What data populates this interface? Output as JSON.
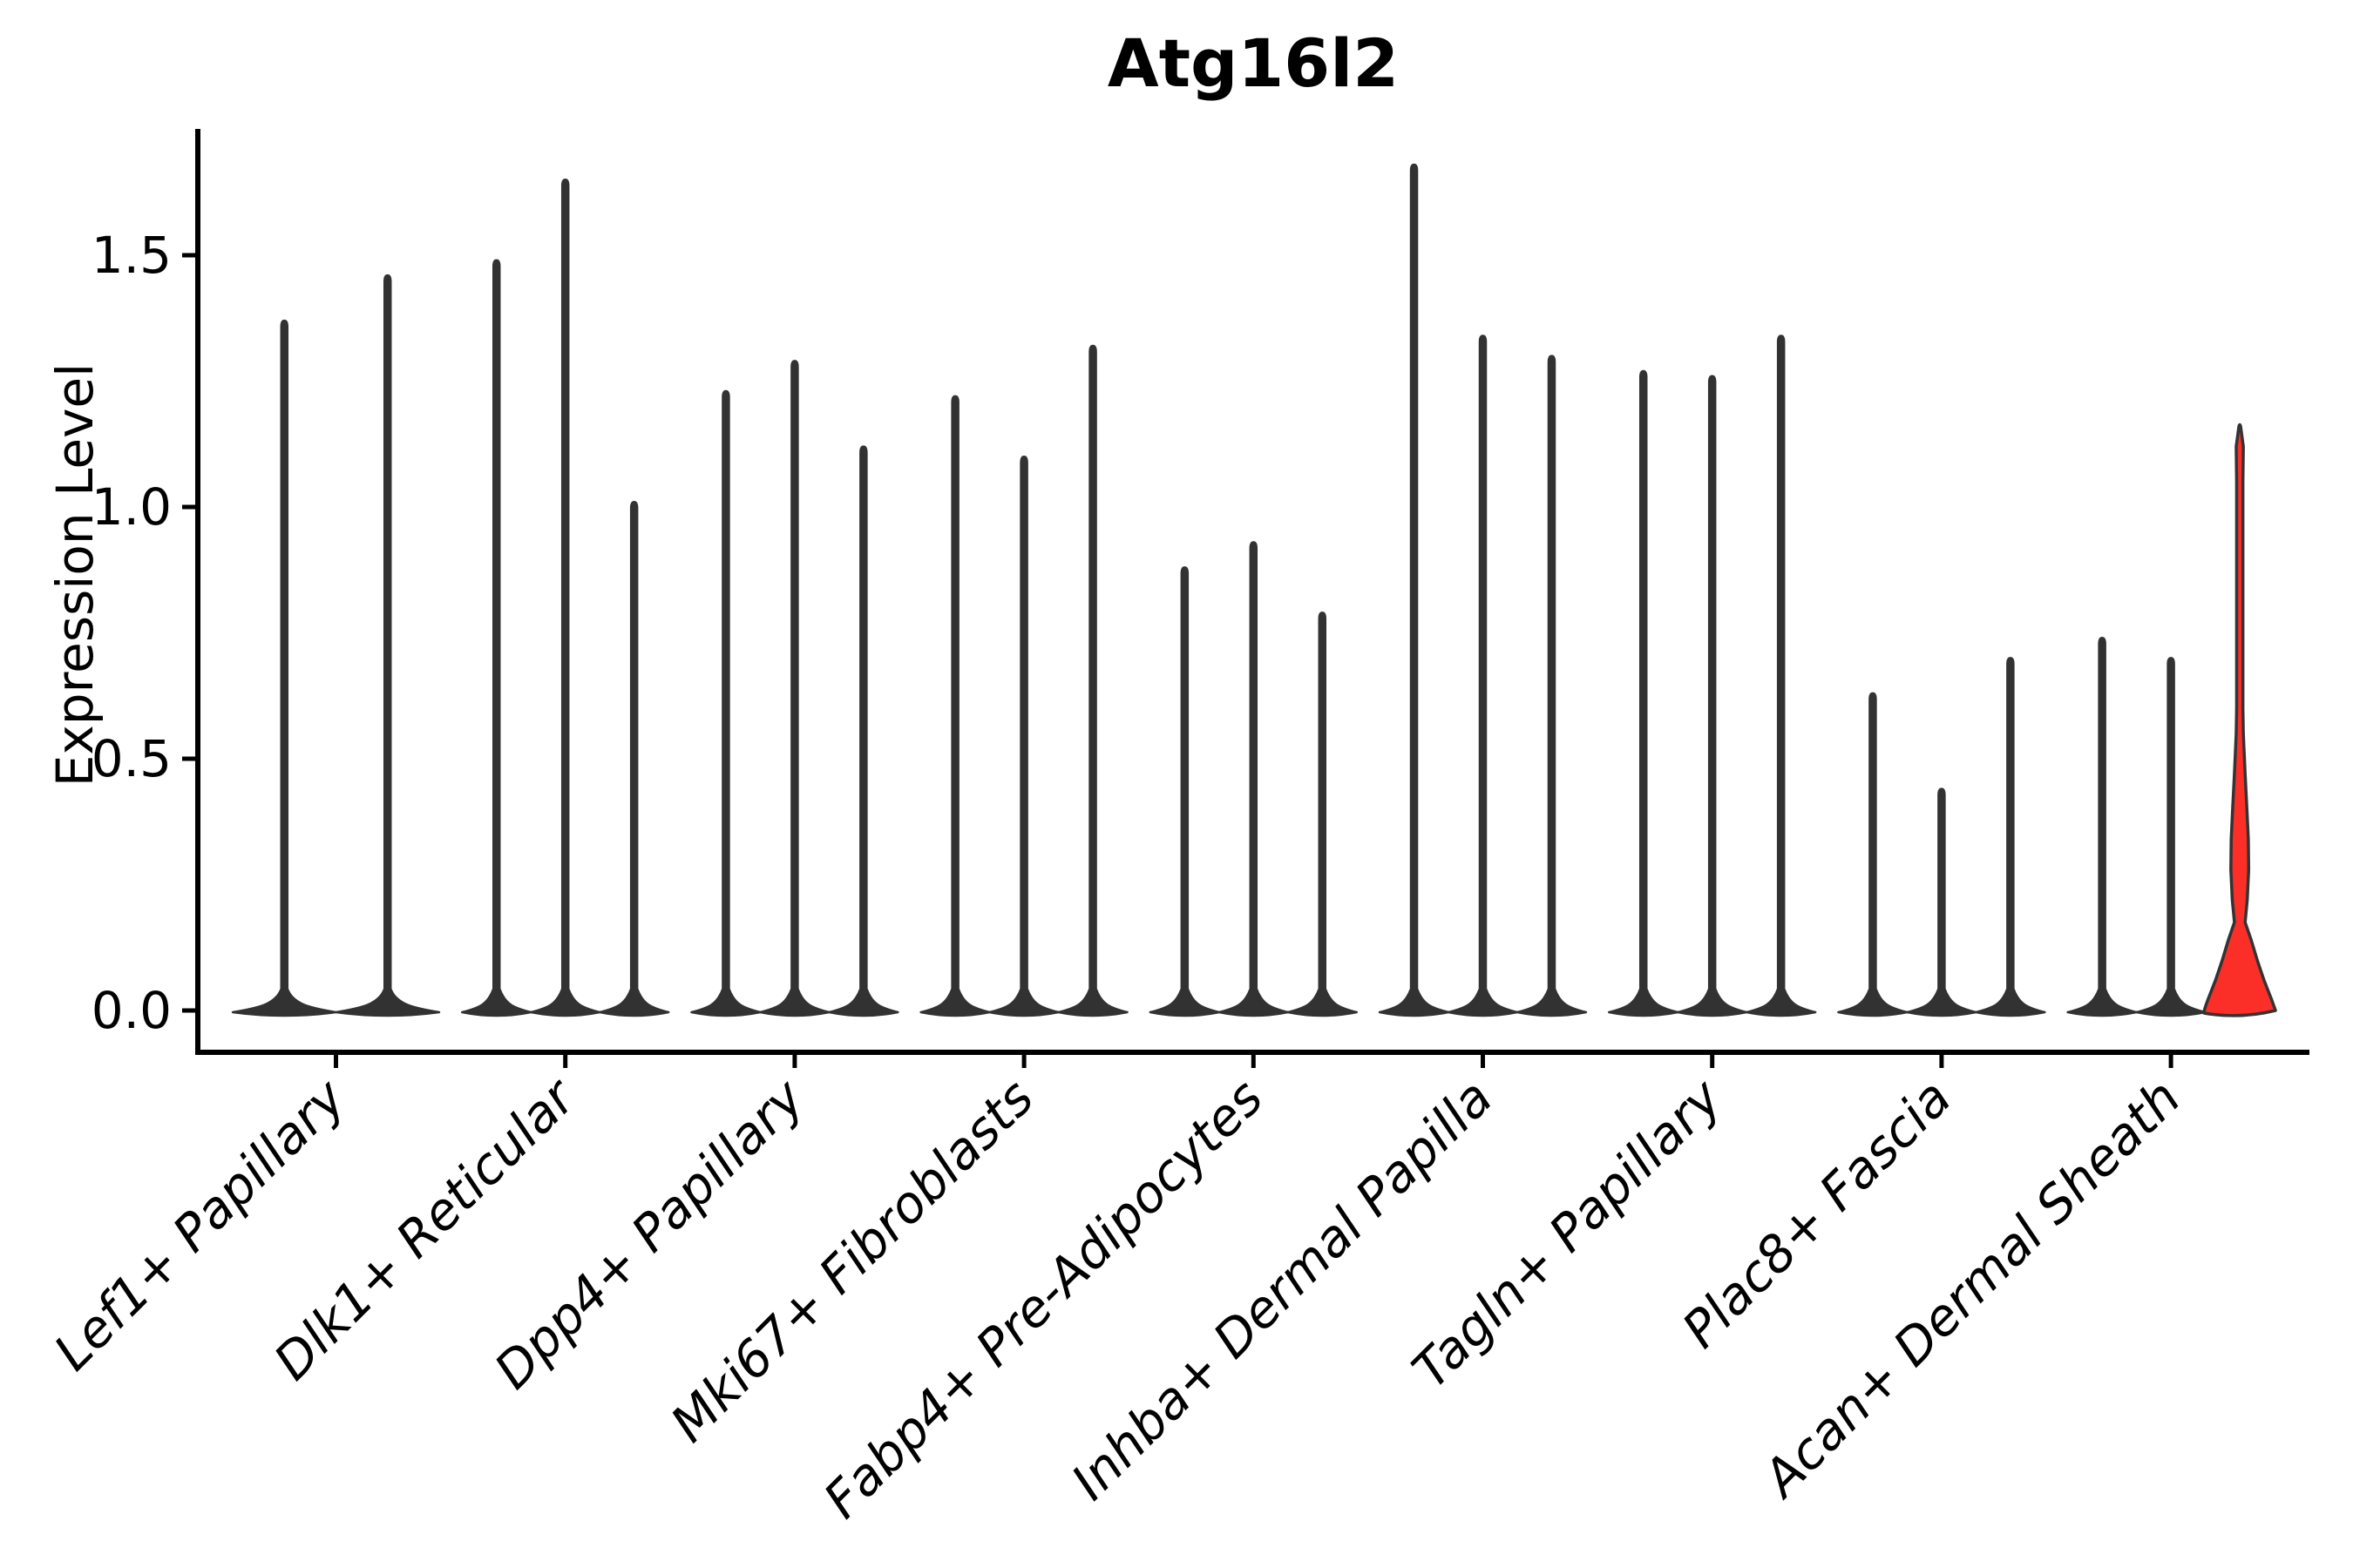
{
  "colors": {
    "background": "#ffffff",
    "violin_fill": "#323232",
    "violin_outline": "#323232",
    "highlight_fill": "#fb2f28",
    "highlight_outline": "#333333",
    "axis": "#000000",
    "text": "#000000"
  },
  "chart_data": {
    "type": "violin",
    "title": "Atg16l2",
    "xlabel": "",
    "ylabel": "Expression Level",
    "ylim": [
      -0.08,
      1.75
    ],
    "yticks": [
      0.0,
      0.5,
      1.0,
      1.5
    ],
    "ytick_labels": [
      "0.0",
      "0.5",
      "1.0",
      "1.5"
    ],
    "grid": false,
    "legend_position": "none",
    "categories": [
      "Lef1+ Papillary",
      "Dlk1+ Reticular",
      "Dpp4+ Papillary",
      "Mki67+ Fibroblasts",
      "Fabp4+ Pre-Adipocytes",
      "Inhba+ Dermal Papilla",
      "Tagln+ Papillary",
      "Plac8+ Fascia",
      "Acan+ Dermal Sheath"
    ],
    "groups": [
      {
        "label": "Lef1+ Papillary",
        "violins": [
          {
            "max": 1.37
          },
          {
            "max": 1.46
          }
        ]
      },
      {
        "label": "Dlk1+ Reticular",
        "violins": [
          {
            "max": 1.49
          },
          {
            "max": 1.65
          },
          {
            "max": 1.01
          }
        ]
      },
      {
        "label": "Dpp4+ Papillary",
        "violins": [
          {
            "max": 1.23
          },
          {
            "max": 1.29
          },
          {
            "max": 1.12
          }
        ]
      },
      {
        "label": "Mki67+ Fibroblasts",
        "violins": [
          {
            "max": 1.22
          },
          {
            "max": 1.1
          },
          {
            "max": 1.32
          }
        ]
      },
      {
        "label": "Fabp4+ Pre-Adipocytes",
        "violins": [
          {
            "max": 0.88
          },
          {
            "max": 0.93
          },
          {
            "max": 0.79
          }
        ]
      },
      {
        "label": "Inhba+ Dermal Papilla",
        "violins": [
          {
            "max": 1.68
          },
          {
            "max": 1.34
          },
          {
            "max": 1.3
          }
        ]
      },
      {
        "label": "Tagln+ Papillary",
        "violins": [
          {
            "max": 1.27
          },
          {
            "max": 1.26
          },
          {
            "max": 1.34
          }
        ]
      },
      {
        "label": "Plac8+ Fascia",
        "violins": [
          {
            "max": 0.63
          },
          {
            "max": 0.44
          },
          {
            "max": 0.7
          }
        ]
      },
      {
        "label": "Acan+ Dermal Sheath",
        "violins": [
          {
            "max": 0.74
          },
          {
            "max": 0.7
          },
          {
            "max": 1.16,
            "highlight": true,
            "profile": [
              [
                0.0,
                1.0
              ],
              [
                0.02,
                0.9
              ],
              [
                0.06,
                0.68
              ],
              [
                0.1,
                0.49
              ],
              [
                0.14,
                0.32
              ],
              [
                0.175,
                0.15
              ],
              [
                0.22,
                0.21
              ],
              [
                0.28,
                0.25
              ],
              [
                0.34,
                0.24
              ],
              [
                0.4,
                0.2
              ],
              [
                0.47,
                0.15
              ],
              [
                0.55,
                0.1
              ],
              [
                0.6,
                0.088
              ],
              [
                1.05,
                0.088
              ],
              [
                1.12,
                0.1
              ],
              [
                1.16,
                0.02
              ]
            ]
          }
        ]
      }
    ]
  }
}
